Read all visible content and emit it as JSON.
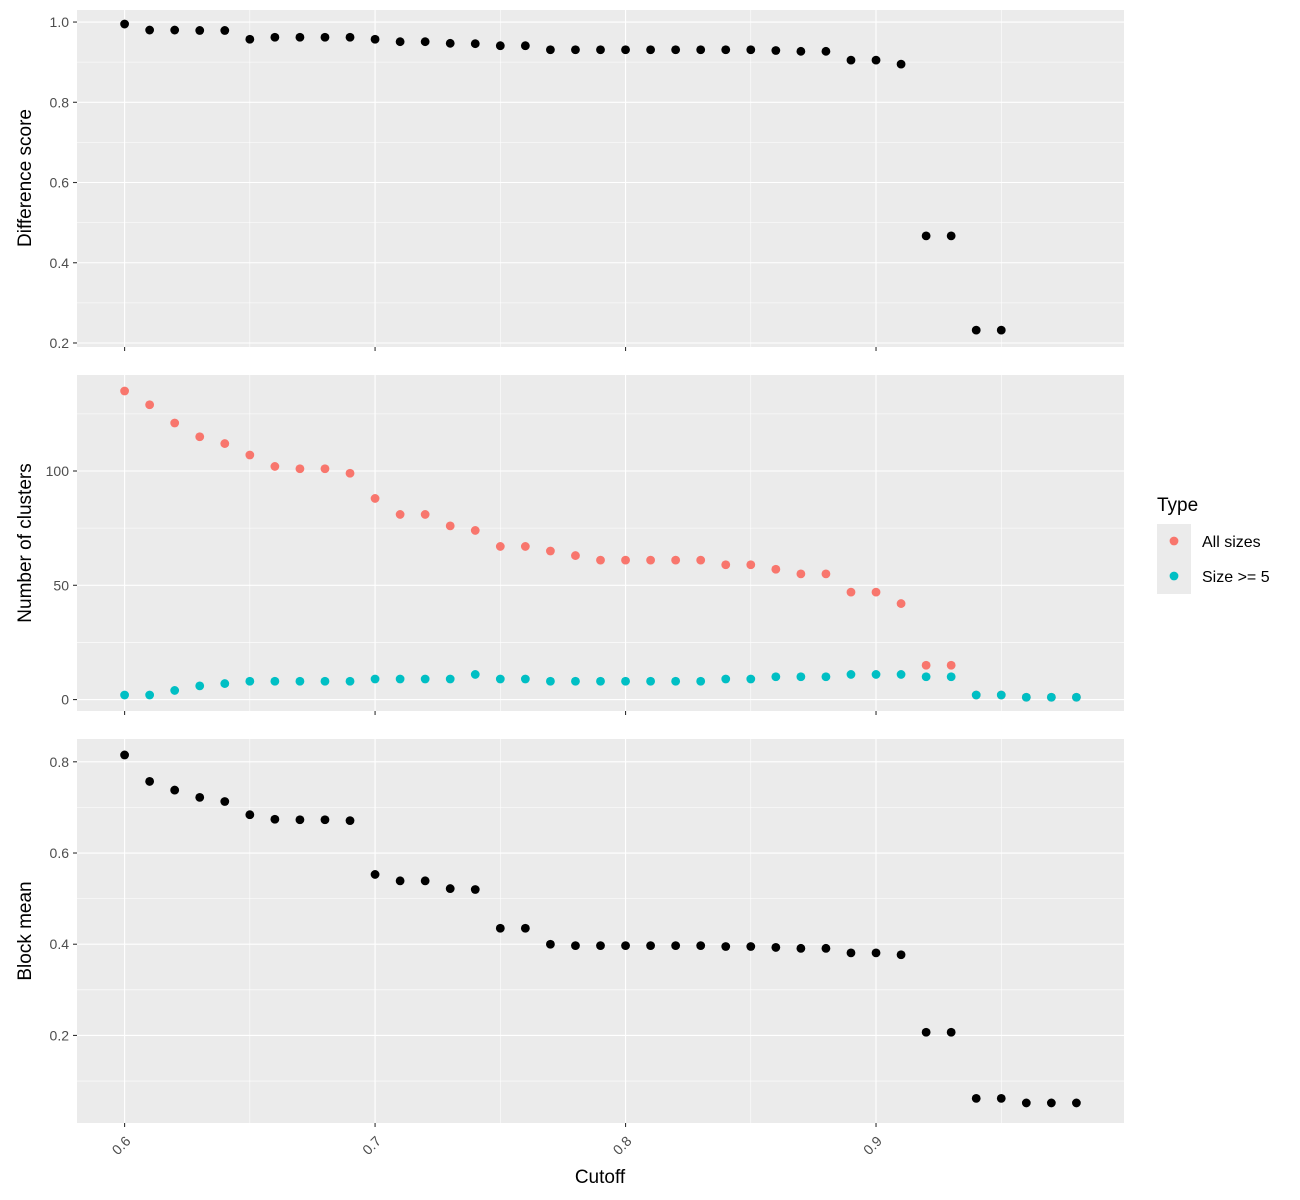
{
  "chart_data": {
    "type": "scatter",
    "x_label": "Cutoff",
    "x_range": [
      0.581,
      0.999
    ],
    "x_ticks": [
      0.6,
      0.7,
      0.8,
      0.9
    ],
    "x_tick_labels": [
      "0.6",
      "0.7",
      "0.8",
      "0.9"
    ],
    "x_tick_rotation_deg": 45,
    "panel_background": "#ebebeb",
    "grid_color": "#ffffff",
    "grid": true,
    "shared_x_axis": true,
    "panels": [
      {
        "id": "difference",
        "y_label": "Difference score",
        "y_range": [
          0.19,
          1.03
        ],
        "y_ticks": [
          0.2,
          0.4,
          0.6,
          0.8,
          1.0
        ],
        "y_tick_labels": [
          "0.2",
          "0.4",
          "0.6",
          "0.8",
          "1.0"
        ],
        "series": [
          {
            "color": "#000000",
            "x": [
              0.6,
              0.61,
              0.62,
              0.63,
              0.64,
              0.65,
              0.66,
              0.67,
              0.68,
              0.69,
              0.7,
              0.71,
              0.72,
              0.73,
              0.74,
              0.75,
              0.76,
              0.77,
              0.78,
              0.79,
              0.8,
              0.81,
              0.82,
              0.83,
              0.84,
              0.85,
              0.86,
              0.87,
              0.88,
              0.89,
              0.9,
              0.91,
              0.92,
              0.93,
              0.94,
              0.95
            ],
            "y": [
              0.995,
              0.98,
              0.98,
              0.979,
              0.979,
              0.957,
              0.962,
              0.962,
              0.962,
              0.962,
              0.957,
              0.951,
              0.951,
              0.947,
              0.946,
              0.941,
              0.941,
              0.931,
              0.931,
              0.931,
              0.931,
              0.931,
              0.931,
              0.931,
              0.931,
              0.931,
              0.929,
              0.927,
              0.927,
              0.905,
              0.905,
              0.895,
              0.467,
              0.467,
              0.232,
              0.232
            ]
          }
        ]
      },
      {
        "id": "clusters",
        "y_label": "Number of clusters",
        "y_range": [
          -5,
          142
        ],
        "y_ticks": [
          0,
          50,
          100
        ],
        "y_tick_labels": [
          "0",
          "50",
          "100"
        ],
        "series": [
          {
            "name": "All sizes",
            "color": "#f8766d",
            "x": [
              0.6,
              0.61,
              0.62,
              0.63,
              0.64,
              0.65,
              0.66,
              0.67,
              0.68,
              0.69,
              0.7,
              0.71,
              0.72,
              0.73,
              0.74,
              0.75,
              0.76,
              0.77,
              0.78,
              0.79,
              0.8,
              0.81,
              0.82,
              0.83,
              0.84,
              0.85,
              0.86,
              0.87,
              0.88,
              0.89,
              0.9,
              0.91,
              0.92,
              0.93,
              0.94,
              0.95,
              0.96,
              0.97,
              0.98
            ],
            "y": [
              135,
              129,
              121,
              115,
              112,
              107,
              102,
              101,
              101,
              99,
              88,
              81,
              81,
              76,
              74,
              67,
              67,
              65,
              63,
              61,
              61,
              61,
              61,
              61,
              59,
              59,
              57,
              55,
              55,
              47,
              47,
              42,
              15,
              15,
              2,
              2,
              1,
              1,
              1
            ]
          },
          {
            "name": "Size >= 5",
            "color": "#00bfc4",
            "x": [
              0.6,
              0.61,
              0.62,
              0.63,
              0.64,
              0.65,
              0.66,
              0.67,
              0.68,
              0.69,
              0.7,
              0.71,
              0.72,
              0.73,
              0.74,
              0.75,
              0.76,
              0.77,
              0.78,
              0.79,
              0.8,
              0.81,
              0.82,
              0.83,
              0.84,
              0.85,
              0.86,
              0.87,
              0.88,
              0.89,
              0.9,
              0.91,
              0.92,
              0.93,
              0.94,
              0.95,
              0.96,
              0.97,
              0.98
            ],
            "y": [
              2,
              2,
              4,
              6,
              7,
              8,
              8,
              8,
              8,
              8,
              9,
              9,
              9,
              9,
              11,
              9,
              9,
              8,
              8,
              8,
              8,
              8,
              8,
              8,
              9,
              9,
              10,
              10,
              10,
              11,
              11,
              11,
              10,
              10,
              2,
              2,
              1,
              1,
              1
            ]
          }
        ]
      },
      {
        "id": "block",
        "y_label": "Block mean",
        "y_range": [
          0.008,
          0.85
        ],
        "y_ticks": [
          0.2,
          0.4,
          0.6,
          0.8
        ],
        "y_tick_labels": [
          "0.2",
          "0.4",
          "0.6",
          "0.8"
        ],
        "series": [
          {
            "color": "#000000",
            "x": [
              0.6,
              0.61,
              0.62,
              0.63,
              0.64,
              0.65,
              0.66,
              0.67,
              0.68,
              0.69,
              0.7,
              0.71,
              0.72,
              0.73,
              0.74,
              0.75,
              0.76,
              0.77,
              0.78,
              0.79,
              0.8,
              0.81,
              0.82,
              0.83,
              0.84,
              0.85,
              0.86,
              0.87,
              0.88,
              0.89,
              0.9,
              0.91,
              0.92,
              0.93,
              0.94,
              0.95,
              0.96,
              0.97,
              0.98
            ],
            "y": [
              0.815,
              0.757,
              0.738,
              0.722,
              0.713,
              0.684,
              0.674,
              0.673,
              0.673,
              0.671,
              0.553,
              0.539,
              0.539,
              0.522,
              0.52,
              0.435,
              0.435,
              0.4,
              0.397,
              0.397,
              0.397,
              0.397,
              0.397,
              0.397,
              0.395,
              0.395,
              0.393,
              0.391,
              0.391,
              0.381,
              0.381,
              0.377,
              0.207,
              0.207,
              0.062,
              0.062,
              0.052,
              0.052,
              0.052
            ]
          }
        ]
      }
    ],
    "legend": {
      "title": "Type",
      "position": "right",
      "entries": [
        {
          "label": "All sizes",
          "color": "#f8766d"
        },
        {
          "label": "Size >= 5",
          "color": "#00bfc4"
        }
      ]
    }
  }
}
